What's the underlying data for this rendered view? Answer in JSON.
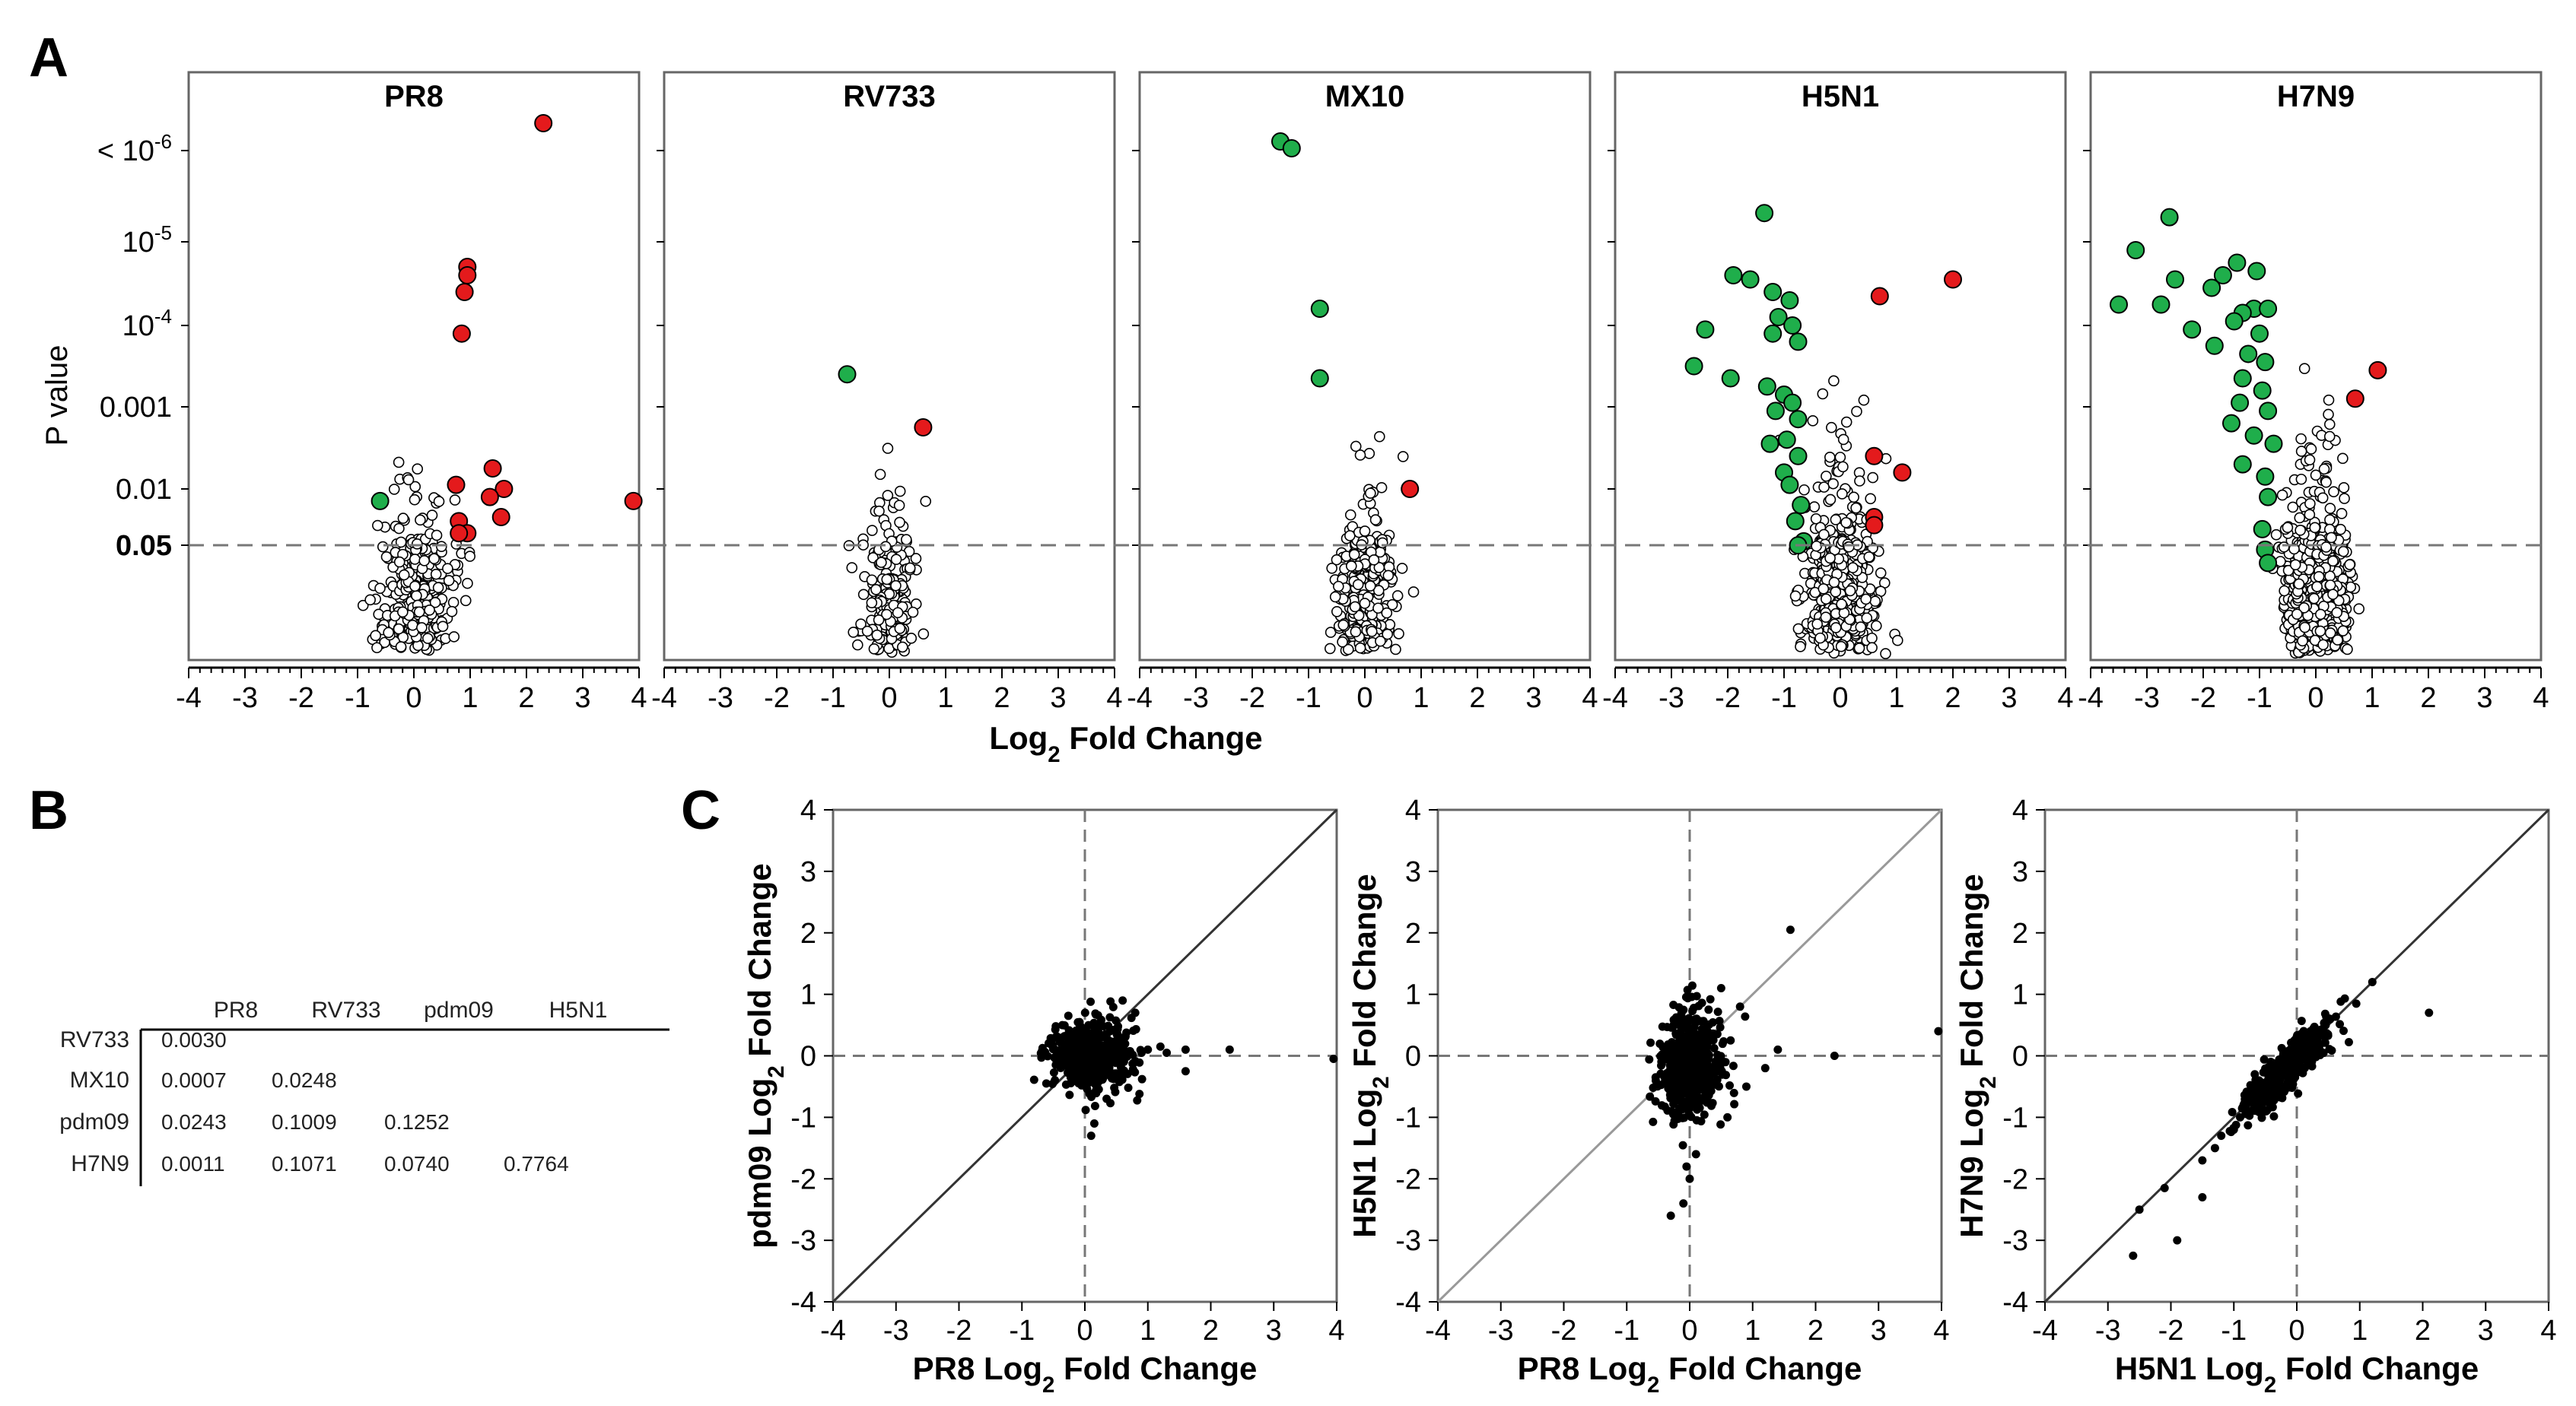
{
  "panel_labels": {
    "a": "A",
    "b": "B",
    "c": "C"
  },
  "colors": {
    "up": "#e41a1c",
    "down": "#1fae4b",
    "ns": "#ffffff",
    "stroke": "#000000",
    "dash": "#777777",
    "diag_dark": "#333333",
    "diag_light": "#999999"
  },
  "chart_data": [
    {
      "type": "scatter",
      "title": "PR8",
      "xlabel": "Log₂ Fold Change",
      "ylabel": "P value",
      "xlim": [
        -4,
        4
      ],
      "x_ticks": [
        "-4",
        "-3",
        "-2",
        "-1",
        "0",
        "1",
        "2",
        "3",
        "4"
      ],
      "y_tick_labels": [
        "< 10-6",
        "10-5",
        "10-4",
        "0.001",
        "0.01",
        "0.05"
      ],
      "threshold_label": "0.05",
      "up": [
        [
          2.3,
          6.8
        ],
        [
          0.95,
          4.7
        ],
        [
          0.95,
          4.6
        ],
        [
          0.9,
          4.4
        ],
        [
          0.85,
          3.9
        ],
        [
          1.4,
          2.25
        ],
        [
          1.6,
          2.0
        ],
        [
          1.35,
          1.9
        ],
        [
          0.75,
          2.05
        ],
        [
          3.9,
          1.85
        ],
        [
          1.55,
          1.65
        ],
        [
          0.8,
          1.6
        ],
        [
          0.95,
          1.45
        ],
        [
          0.8,
          1.45
        ]
      ],
      "down": [
        [
          -0.6,
          1.85
        ]
      ],
      "ns_center": [
        0.05,
        0.7
      ],
      "ns_spread": [
        0.35,
        1.0
      ],
      "ns_count": 300
    },
    {
      "type": "scatter",
      "title": "RV733",
      "xlim": [
        -4,
        4
      ],
      "x_ticks": [
        "-4",
        "-3",
        "-2",
        "-1",
        "0",
        "1",
        "2",
        "3",
        "4"
      ],
      "up": [
        [
          0.6,
          2.75
        ]
      ],
      "down": [
        [
          -0.75,
          3.4
        ]
      ],
      "ns_center": [
        0.0,
        0.8
      ],
      "ns_spread": [
        0.22,
        0.9
      ],
      "ns_count": 220
    },
    {
      "type": "scatter",
      "title": "MX10",
      "xlim": [
        -4,
        4
      ],
      "x_ticks": [
        "-4",
        "-3",
        "-2",
        "-1",
        "0",
        "1",
        "2",
        "3",
        "4"
      ],
      "up": [
        [
          0.8,
          2.0
        ]
      ],
      "down": [
        [
          -1.5,
          6.4
        ],
        [
          -1.3,
          6.25
        ],
        [
          -0.8,
          4.2
        ],
        [
          -0.8,
          3.35
        ]
      ],
      "ns_center": [
        0.0,
        0.8
      ],
      "ns_spread": [
        0.25,
        1.0
      ],
      "ns_count": 320
    },
    {
      "type": "scatter",
      "title": "H5N1",
      "xlim": [
        -4,
        4
      ],
      "x_ticks": [
        "-4",
        "-3",
        "-2",
        "-1",
        "0",
        "1",
        "2",
        "3",
        "4"
      ],
      "up": [
        [
          2.0,
          4.55
        ],
        [
          0.7,
          4.35
        ],
        [
          0.6,
          2.4
        ],
        [
          1.1,
          2.2
        ],
        [
          0.6,
          1.65
        ],
        [
          0.6,
          1.55
        ]
      ],
      "down": [
        [
          -1.35,
          5.35
        ],
        [
          -1.9,
          4.6
        ],
        [
          -1.6,
          4.55
        ],
        [
          -1.2,
          4.4
        ],
        [
          -0.9,
          4.3
        ],
        [
          -1.1,
          4.1
        ],
        [
          -0.85,
          4.0
        ],
        [
          -2.4,
          3.95
        ],
        [
          -1.2,
          3.9
        ],
        [
          -0.75,
          3.8
        ],
        [
          -2.6,
          3.5
        ],
        [
          -1.95,
          3.35
        ],
        [
          -1.3,
          3.25
        ],
        [
          -1.0,
          3.15
        ],
        [
          -0.85,
          3.05
        ],
        [
          -1.15,
          2.95
        ],
        [
          -0.75,
          2.85
        ],
        [
          -0.95,
          2.6
        ],
        [
          -1.25,
          2.55
        ],
        [
          -0.75,
          2.4
        ],
        [
          -1.0,
          2.2
        ],
        [
          -0.9,
          2.05
        ],
        [
          -0.7,
          1.8
        ],
        [
          -0.8,
          1.6
        ],
        [
          -0.65,
          1.35
        ],
        [
          -0.75,
          1.3
        ]
      ],
      "ns_center": [
        0.0,
        1.1
      ],
      "ns_spread": [
        0.3,
        1.2
      ],
      "ns_count": 650
    },
    {
      "type": "scatter",
      "title": "H7N9",
      "xlim": [
        -4,
        4
      ],
      "x_ticks": [
        "-4",
        "-3",
        "-2",
        "-1",
        "0",
        "1",
        "2",
        "3",
        "4"
      ],
      "up": [
        [
          1.1,
          3.45
        ],
        [
          0.7,
          3.1
        ]
      ],
      "down": [
        [
          -2.6,
          5.3
        ],
        [
          -3.2,
          4.9
        ],
        [
          -1.4,
          4.75
        ],
        [
          -1.05,
          4.65
        ],
        [
          -1.65,
          4.6
        ],
        [
          -2.5,
          4.55
        ],
        [
          -1.85,
          4.45
        ],
        [
          -3.5,
          4.25
        ],
        [
          -2.75,
          4.25
        ],
        [
          -1.1,
          4.2
        ],
        [
          -1.3,
          4.15
        ],
        [
          -0.85,
          4.2
        ],
        [
          -1.45,
          4.05
        ],
        [
          -2.2,
          3.95
        ],
        [
          -1.0,
          3.9
        ],
        [
          -1.8,
          3.75
        ],
        [
          -1.2,
          3.65
        ],
        [
          -0.9,
          3.55
        ],
        [
          -1.3,
          3.35
        ],
        [
          -0.95,
          3.2
        ],
        [
          -1.35,
          3.05
        ],
        [
          -0.85,
          2.95
        ],
        [
          -1.5,
          2.8
        ],
        [
          -1.1,
          2.65
        ],
        [
          -0.75,
          2.55
        ],
        [
          -1.3,
          2.3
        ],
        [
          -0.9,
          2.15
        ],
        [
          -0.85,
          1.9
        ],
        [
          -0.95,
          1.5
        ],
        [
          -0.9,
          1.25
        ],
        [
          -0.85,
          1.1
        ]
      ],
      "ns_center": [
        0.0,
        1.1
      ],
      "ns_spread": [
        0.28,
        1.25
      ],
      "ns_count": 600
    },
    {
      "type": "scatter",
      "xlabel": "PR8 Log₂ Fold Change",
      "ylabel": "pdm09 Log₂ Fold Change",
      "xlim": [
        -4,
        4
      ],
      "ylim": [
        -4,
        4
      ],
      "x_ticks": [
        "-4",
        "-3",
        "-2",
        "-1",
        "0",
        "1",
        "2",
        "3",
        "4"
      ],
      "y_ticks": [
        "-4",
        "-3",
        "-2",
        "-1",
        "0",
        "1",
        "2",
        "3",
        "4"
      ],
      "points": [
        [
          0.6,
          0.9
        ],
        [
          0.8,
          0.7
        ],
        [
          1.2,
          0.15
        ],
        [
          1.0,
          0.1
        ],
        [
          1.6,
          0.1
        ],
        [
          2.3,
          0.1
        ],
        [
          1.6,
          -0.25
        ],
        [
          3.95,
          -0.05
        ],
        [
          0.1,
          -1.3
        ],
        [
          0.15,
          -1.1
        ],
        [
          -0.4,
          -0.05
        ],
        [
          0.4,
          0.4
        ],
        [
          0.9,
          0.05
        ],
        [
          1.3,
          0.05
        ]
      ],
      "cluster_center": [
        0.1,
        0.0
      ],
      "cluster_spread": [
        0.3,
        0.3
      ],
      "cluster_count": 500
    },
    {
      "type": "scatter",
      "xlabel": "PR8 Log₂ Fold Change",
      "ylabel": "H5N1 Log₂ Fold Change",
      "xlim": [
        -4,
        4
      ],
      "ylim": [
        -4,
        4
      ],
      "x_ticks": [
        "-4",
        "-3",
        "-2",
        "-1",
        "0",
        "1",
        "2",
        "3",
        "4"
      ],
      "y_ticks": [
        "-4",
        "-3",
        "-2",
        "-1",
        "0",
        "1",
        "2",
        "3",
        "4"
      ],
      "points": [
        [
          1.6,
          2.05
        ],
        [
          3.95,
          0.4
        ],
        [
          2.3,
          0.0
        ],
        [
          1.4,
          0.1
        ],
        [
          0.5,
          1.1
        ],
        [
          0.8,
          0.8
        ],
        [
          -0.3,
          -2.6
        ],
        [
          -0.1,
          -2.4
        ],
        [
          0.0,
          -2.0
        ],
        [
          -0.05,
          -1.8
        ],
        [
          0.1,
          -1.6
        ],
        [
          0.6,
          -1.0
        ],
        [
          0.9,
          -0.5
        ],
        [
          1.2,
          -0.2
        ]
      ],
      "cluster_center": [
        0.0,
        -0.15
      ],
      "cluster_spread": [
        0.25,
        0.45
      ],
      "cluster_count": 500
    },
    {
      "type": "scatter",
      "xlabel": "H5N1 Log₂ Fold Change",
      "ylabel": "H7N9 Log₂ Fold Change",
      "xlim": [
        -4,
        4
      ],
      "ylim": [
        -4,
        4
      ],
      "x_ticks": [
        "-4",
        "-3",
        "-2",
        "-1",
        "0",
        "1",
        "2",
        "3",
        "4"
      ],
      "y_ticks": [
        "-4",
        "-3",
        "-2",
        "-1",
        "0",
        "1",
        "2",
        "3",
        "4"
      ],
      "points": [
        [
          -2.6,
          -3.25
        ],
        [
          -1.9,
          -3.0
        ],
        [
          -2.1,
          -2.15
        ],
        [
          -2.5,
          -2.5
        ],
        [
          -1.5,
          -2.3
        ],
        [
          -1.3,
          -1.5
        ],
        [
          -1.5,
          -1.7
        ],
        [
          -0.9,
          -1.0
        ],
        [
          1.2,
          1.2
        ],
        [
          2.1,
          0.7
        ],
        [
          -1.0,
          -1.2
        ],
        [
          -1.2,
          -1.3
        ],
        [
          -0.6,
          -0.4
        ]
      ],
      "cluster_center": [
        -0.15,
        -0.2
      ],
      "cluster_spread": [
        0.35,
        0.35
      ],
      "cluster_count": 450,
      "cluster_corr": true
    }
  ],
  "table": {
    "columns": [
      "PR8",
      "RV733",
      "pdm09",
      "H5N1"
    ],
    "rows": [
      {
        "label": "RV733",
        "values": [
          "0.0030",
          "",
          "",
          ""
        ]
      },
      {
        "label": "MX10",
        "values": [
          "0.0007",
          "0.0248",
          "",
          ""
        ]
      },
      {
        "label": "pdm09",
        "values": [
          "0.0243",
          "0.1009",
          "0.1252",
          ""
        ]
      },
      {
        "label": "H7N9",
        "values": [
          "0.0011",
          "0.1071",
          "0.0740",
          "0.7764"
        ]
      }
    ]
  }
}
